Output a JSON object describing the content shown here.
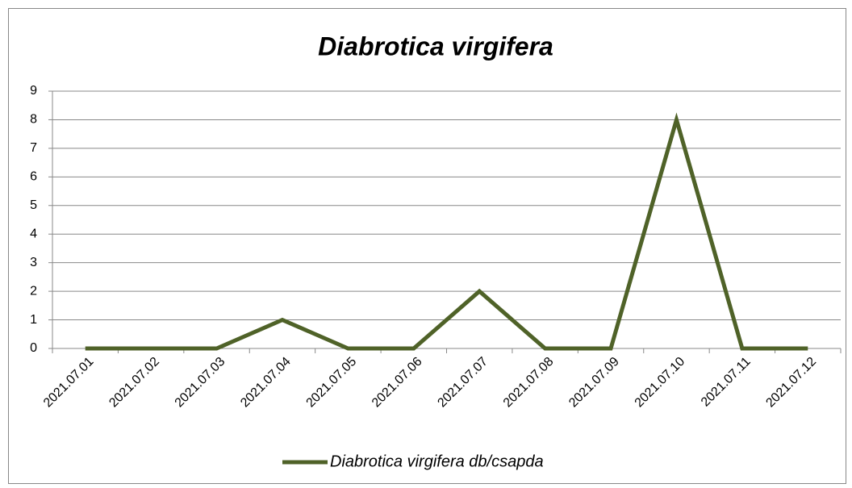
{
  "chart_data": {
    "type": "line",
    "title": "Diabrotica virgifera",
    "categories": [
      "2021.07.01",
      "2021.07.02",
      "2021.07.03",
      "2021.07.04",
      "2021.07.05",
      "2021.07.06",
      "2021.07.07",
      "2021.07.08",
      "2021.07.09",
      "2021.07.10",
      "2021.07.11",
      "2021.07.12"
    ],
    "series": [
      {
        "name": "Diabrotica virgifera db/csapda",
        "color": "#4f6228",
        "values": [
          0,
          0,
          0,
          1,
          0,
          0,
          2,
          0,
          0,
          8,
          0,
          0
        ]
      }
    ],
    "ylim": [
      0,
      9
    ],
    "yticks": [
      0,
      1,
      2,
      3,
      4,
      5,
      6,
      7,
      8,
      9
    ],
    "grid": true,
    "legend": "bottom"
  }
}
